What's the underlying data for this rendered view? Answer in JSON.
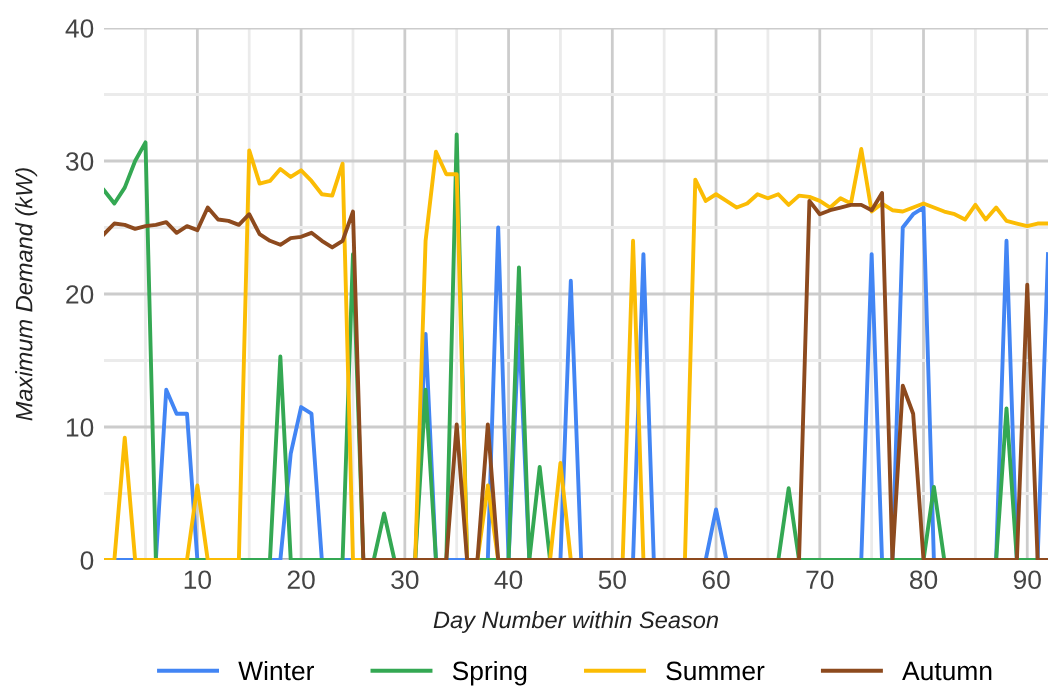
{
  "chart_data": {
    "type": "line",
    "xlabel": "Day Number within Season",
    "ylabel": "Maximum Demand (kW)",
    "x": [
      1,
      2,
      3,
      4,
      5,
      6,
      7,
      8,
      9,
      10,
      11,
      12,
      13,
      14,
      15,
      16,
      17,
      18,
      19,
      20,
      21,
      22,
      23,
      24,
      25,
      26,
      27,
      28,
      29,
      30,
      31,
      32,
      33,
      34,
      35,
      36,
      37,
      38,
      39,
      40,
      41,
      42,
      43,
      44,
      45,
      46,
      47,
      48,
      49,
      50,
      51,
      52,
      53,
      54,
      55,
      56,
      57,
      58,
      59,
      60,
      61,
      62,
      63,
      64,
      65,
      66,
      67,
      68,
      69,
      70,
      71,
      72,
      73,
      74,
      75,
      76,
      77,
      78,
      79,
      80,
      81,
      82,
      83,
      84,
      85,
      86,
      87,
      88,
      89,
      90,
      91,
      92
    ],
    "series": [
      {
        "name": "Winter",
        "color": "#4285f4",
        "values": [
          0,
          0,
          0,
          0,
          0,
          0,
          12.8,
          11,
          11,
          0,
          0,
          0,
          0,
          0,
          0,
          0,
          0,
          0,
          8,
          11.5,
          11,
          0,
          0,
          0,
          0,
          0,
          0,
          0,
          0,
          0,
          0,
          17,
          0,
          0,
          0,
          0,
          0,
          0,
          25,
          0,
          17.5,
          0,
          0,
          0,
          0,
          21,
          0,
          0,
          0,
          0,
          0,
          0,
          23,
          0,
          0,
          0,
          0,
          0,
          0,
          3.8,
          0,
          0,
          0,
          0,
          0,
          0,
          0,
          0,
          0,
          0,
          0,
          0,
          0,
          0,
          23,
          0,
          0,
          25,
          26,
          26.5,
          0,
          0,
          0,
          0,
          0,
          0,
          0,
          24,
          0,
          0,
          0,
          23
        ]
      },
      {
        "name": "Spring",
        "color": "#34a853",
        "values": [
          27.8,
          26.8,
          28,
          30,
          31.4,
          0,
          0,
          0,
          0,
          0,
          0,
          0,
          0,
          0,
          0,
          0,
          0,
          15.3,
          0,
          0,
          0,
          0,
          0,
          0,
          23,
          0,
          0,
          3.5,
          0,
          0,
          0,
          12.8,
          0,
          0,
          32,
          0,
          0,
          0,
          0,
          0,
          22,
          0,
          7,
          0,
          0,
          0,
          0,
          0,
          0,
          0,
          0,
          0,
          0,
          0,
          0,
          0,
          0,
          0,
          0,
          0,
          0,
          0,
          0,
          0,
          0,
          0,
          5.4,
          0,
          0,
          0,
          0,
          0,
          0,
          0,
          0,
          0,
          0,
          0,
          0,
          0,
          5.5,
          0,
          0,
          0,
          0,
          0,
          0,
          11.4,
          0,
          0,
          0,
          0
        ]
      },
      {
        "name": "Summer",
        "color": "#fbbc04",
        "values": [
          0,
          0,
          9.2,
          0,
          0,
          0,
          0,
          0,
          0,
          5.6,
          0,
          0,
          0,
          0,
          30.8,
          28.3,
          28.5,
          29.4,
          28.8,
          29.3,
          28.5,
          27.5,
          27.4,
          29.8,
          0,
          0,
          0,
          0,
          0,
          0,
          0,
          24,
          30.7,
          29,
          29,
          0,
          0,
          5.6,
          0,
          0,
          0,
          0,
          0,
          0,
          7.3,
          0,
          0,
          0,
          0,
          0,
          0,
          24,
          0,
          0,
          0,
          0,
          0,
          28.6,
          27,
          27.5,
          27,
          26.5,
          26.8,
          27.5,
          27.2,
          27.5,
          26.7,
          27.4,
          27.3,
          27,
          26.5,
          27.2,
          26.8,
          30.9,
          26.2,
          26.8,
          26.3,
          26.2,
          26.5,
          26.8,
          26.5,
          26.2,
          26,
          25.6,
          26.7,
          25.6,
          26.5,
          25.5,
          25.3,
          25.1,
          25.3,
          25.3
        ]
      },
      {
        "name": "Autumn",
        "color": "#8d4a1e",
        "values": [
          24.5,
          25.3,
          25.2,
          24.9,
          25.1,
          25.2,
          25.4,
          24.6,
          25.1,
          24.8,
          26.5,
          25.6,
          25.5,
          25.2,
          26,
          24.5,
          24,
          23.7,
          24.2,
          24.3,
          24.6,
          24,
          23.5,
          24,
          26.2,
          0,
          0,
          0,
          0,
          0,
          0,
          0,
          0,
          0,
          10.2,
          0,
          0,
          10.2,
          0,
          0,
          0,
          0,
          0,
          0,
          0,
          0,
          0,
          0,
          0,
          0,
          0,
          0,
          0,
          0,
          0,
          0,
          0,
          0,
          0,
          0,
          0,
          0,
          0,
          0,
          0,
          0,
          0,
          0,
          27,
          26,
          26.3,
          26.5,
          26.7,
          26.7,
          26.3,
          27.6,
          0,
          13.1,
          11,
          0,
          0,
          0,
          0,
          0,
          0,
          0,
          0,
          0,
          0,
          20.7,
          0,
          0
        ]
      }
    ],
    "xlim": [
      1,
      92
    ],
    "ylim": [
      0,
      40
    ],
    "xticks": [
      {
        "value": 5,
        "label": null
      },
      10,
      {
        "value": 15,
        "label": null
      },
      20,
      {
        "value": 25,
        "label": null
      },
      30,
      {
        "value": 35,
        "label": null
      },
      40,
      {
        "value": 45,
        "label": null
      },
      50,
      {
        "value": 55,
        "label": null
      },
      60,
      {
        "value": 65,
        "label": null
      },
      70,
      {
        "value": 75,
        "label": null
      },
      80,
      {
        "value": 85,
        "label": null
      },
      90
    ],
    "yticks": [
      0,
      {
        "value": 5,
        "label": null
      },
      10,
      {
        "value": 15,
        "label": null
      },
      20,
      {
        "value": 25,
        "label": null
      },
      30,
      {
        "value": 35,
        "label": null
      },
      40
    ],
    "grid": true,
    "legend": "bottom",
    "marker": "none",
    "line_style": "solid"
  }
}
